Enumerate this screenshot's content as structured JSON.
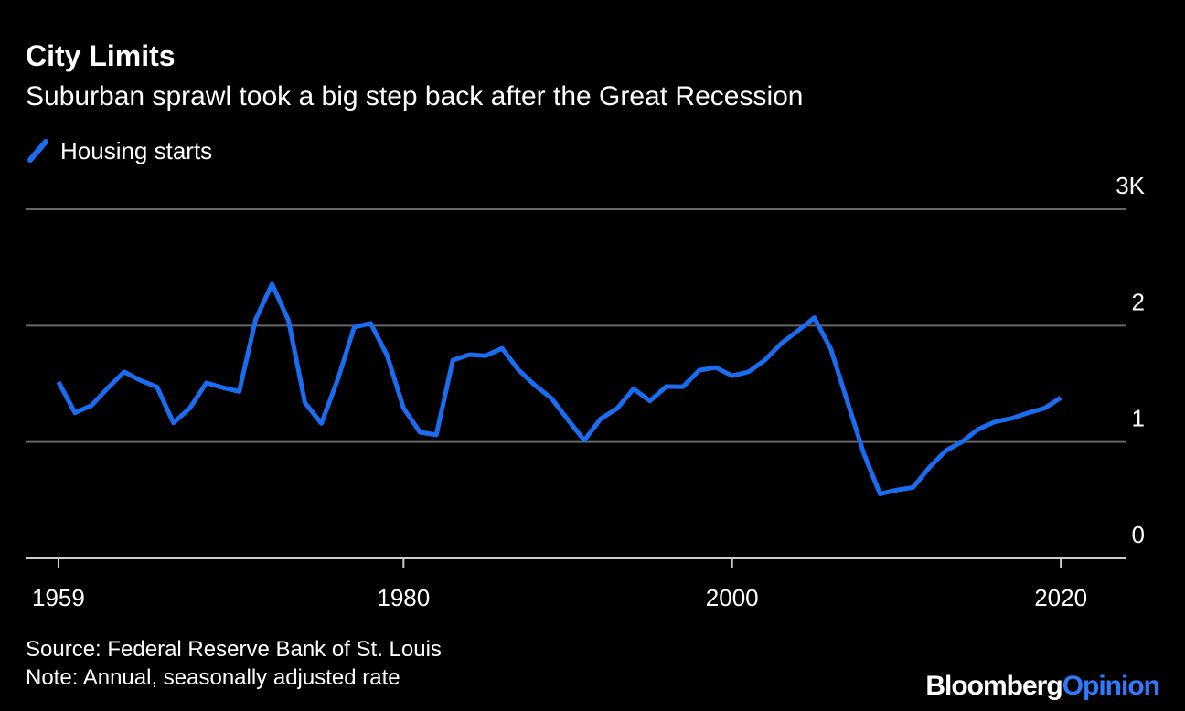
{
  "chart_data": {
    "type": "line",
    "title": "City Limits",
    "subtitle": "Suburban sprawl took a big step back after the Great Recession",
    "source": "Source: Federal Reserve Bank of St. Louis",
    "note": "Note: Annual, seasonally adjusted rate",
    "brand": {
      "name": "Bloomberg",
      "section": "Opinion",
      "section_color": "#2e7bff"
    },
    "x": [
      1959,
      1960,
      1961,
      1962,
      1963,
      1964,
      1965,
      1966,
      1967,
      1968,
      1969,
      1970,
      1971,
      1972,
      1973,
      1974,
      1975,
      1976,
      1977,
      1978,
      1979,
      1980,
      1981,
      1982,
      1983,
      1984,
      1985,
      1986,
      1987,
      1988,
      1989,
      1990,
      1991,
      1992,
      1993,
      1994,
      1995,
      1996,
      1997,
      1998,
      1999,
      2000,
      2001,
      2002,
      2003,
      2004,
      2005,
      2006,
      2007,
      2008,
      2009,
      2010,
      2011,
      2012,
      2013,
      2014,
      2015,
      2016,
      2017,
      2018,
      2019,
      2020
    ],
    "series": [
      {
        "name": "Housing starts",
        "color": "#1a6cf0",
        "values": [
          1.517,
          1.252,
          1.313,
          1.463,
          1.603,
          1.529,
          1.473,
          1.165,
          1.292,
          1.508,
          1.467,
          1.434,
          2.052,
          2.357,
          2.045,
          1.338,
          1.16,
          1.538,
          1.987,
          2.02,
          1.745,
          1.292,
          1.084,
          1.062,
          1.703,
          1.75,
          1.742,
          1.805,
          1.62,
          1.488,
          1.376,
          1.193,
          1.014,
          1.2,
          1.288,
          1.457,
          1.354,
          1.477,
          1.474,
          1.617,
          1.641,
          1.569,
          1.603,
          1.705,
          1.848,
          1.956,
          2.068,
          1.801,
          1.355,
          0.906,
          0.554,
          0.587,
          0.609,
          0.781,
          0.925,
          1.003,
          1.112,
          1.174,
          1.203,
          1.25,
          1.29,
          1.38
        ]
      }
    ],
    "xlim": [
      1957,
      2024
    ],
    "xticks": [
      1959,
      1980,
      2000,
      2020
    ],
    "ylim": [
      0,
      3
    ],
    "yticks": [
      0,
      1,
      2,
      {
        "value": 3,
        "label": "3K"
      }
    ],
    "grid": true
  }
}
